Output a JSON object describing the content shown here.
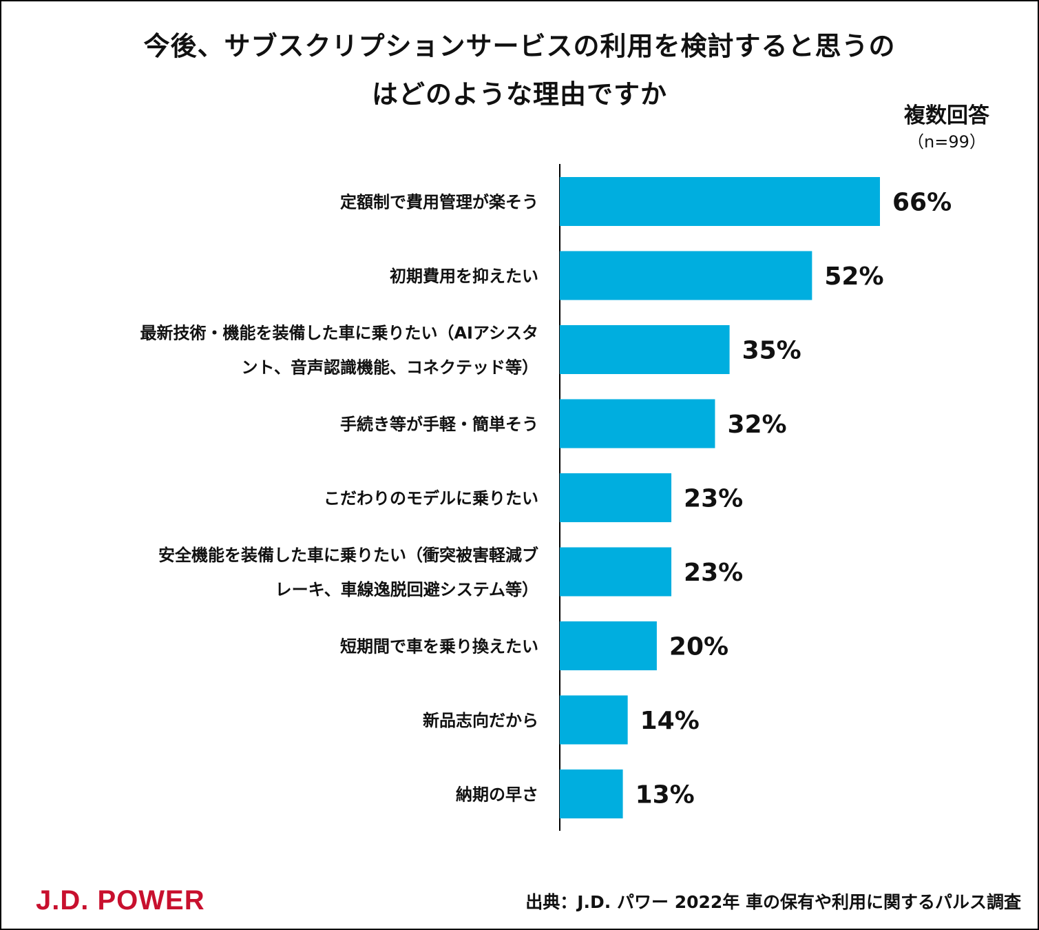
{
  "title_lines": [
    "今後、サブスクリプションサービスの利用を検討すると思うの",
    "はどのような理由ですか"
  ],
  "response_note": "複数回答",
  "sample_note": "（n=99）",
  "chart_data": {
    "type": "bar",
    "orientation": "horizontal",
    "title": "今後、サブスクリプションサービスの利用を検討すると思うのはどのような理由ですか",
    "categories": [
      [
        "定額制で費用管理が楽そう"
      ],
      [
        "初期費用を抑えたい"
      ],
      [
        "最新技術・機能を装備した車に乗りたい（AIアシスタ",
        "ント、音声認識機能、コネクテッド等）"
      ],
      [
        "手続き等が手軽・簡単そう"
      ],
      [
        "こだわりのモデルに乗りたい"
      ],
      [
        "安全機能を装備した車に乗りたい（衝突被害軽減ブ",
        "レーキ、車線逸脱回避システム等）"
      ],
      [
        "短期間で車を乗り換えたい"
      ],
      [
        "新品志向だから"
      ],
      [
        "納期の早さ"
      ]
    ],
    "values": [
      66,
      52,
      35,
      32,
      23,
      23,
      20,
      14,
      13
    ],
    "value_labels": [
      "66%",
      "52%",
      "35%",
      "32%",
      "23%",
      "23%",
      "20%",
      "14%",
      "13%"
    ],
    "unit": "%",
    "xlim": [
      0,
      100
    ],
    "bar_color": "#00aedf",
    "grid": false,
    "legend": "none"
  },
  "footer": {
    "logo": "J.D. POWER",
    "source": "出典：J.D. パワー 2022年 車の保有や利用に関するパルス調査"
  }
}
